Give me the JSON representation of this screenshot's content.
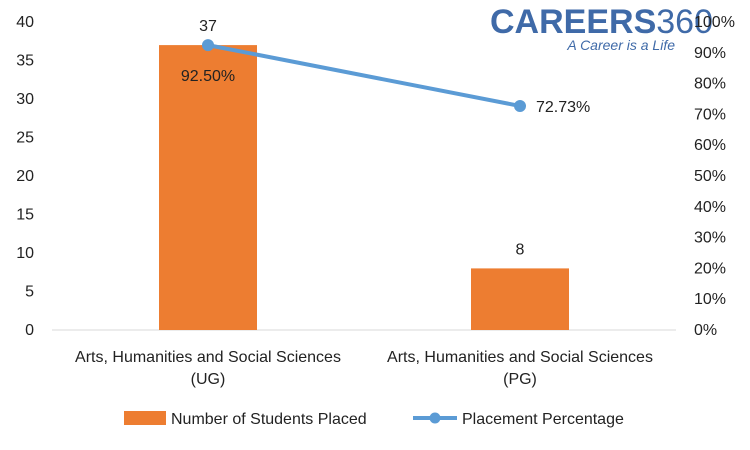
{
  "brand": {
    "name_part1": "CAREERS",
    "name_part2": "360",
    "tagline": "A Career is a Life"
  },
  "colors": {
    "bar": "#ed7d31",
    "line": "#5b9bd5",
    "axis": "#d9d9d9",
    "logo": "#3f6aa8"
  },
  "chart_data": {
    "type": "bar",
    "categories": [
      [
        "Arts, Humanities and Social Sciences",
        "(UG)"
      ],
      [
        "Arts, Humanities and Social Sciences",
        "(PG)"
      ]
    ],
    "series": [
      {
        "name": "Number of Students Placed",
        "type": "bar",
        "axis": "left",
        "values": [
          37,
          8
        ],
        "labels": [
          "37",
          "8"
        ]
      },
      {
        "name": "Placement Percentage",
        "type": "line",
        "axis": "right",
        "values": [
          92.5,
          72.73
        ],
        "labels": [
          "92.50%",
          "72.73%"
        ]
      }
    ],
    "y_left": {
      "min": 0,
      "max": 40,
      "ticks": [
        "0",
        "5",
        "10",
        "15",
        "20",
        "25",
        "30",
        "35",
        "40"
      ]
    },
    "y_right": {
      "min": 0,
      "max": 100,
      "ticks": [
        "0%",
        "10%",
        "20%",
        "30%",
        "40%",
        "50%",
        "60%",
        "70%",
        "80%",
        "90%",
        "100%"
      ]
    },
    "grid": false,
    "legend_position": "bottom"
  }
}
